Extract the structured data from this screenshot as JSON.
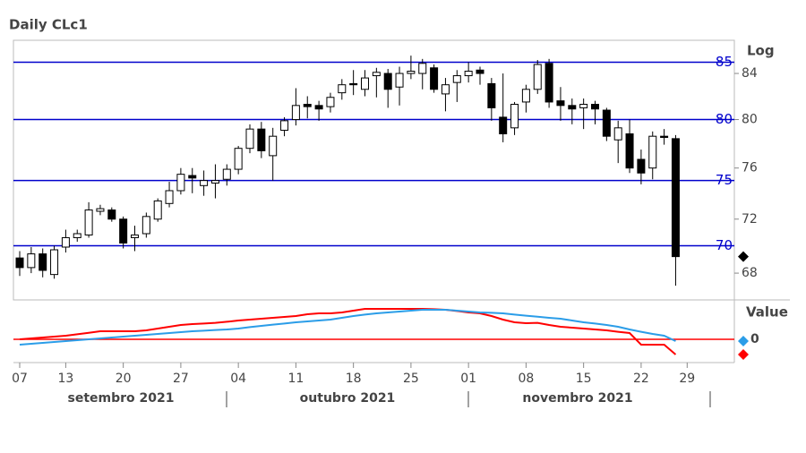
{
  "chart_data": [
    {
      "type": "candlestick",
      "title": "Daily CLc1",
      "scale_label": "Log",
      "log": true,
      "ylim": [
        66.1,
        87
      ],
      "yticks": [
        68,
        72,
        76,
        80,
        84
      ],
      "hlines": [
        85,
        80,
        75,
        70
      ],
      "hline_color": "#0000cc",
      "up_color": "#ffffff",
      "down_color": "#000000",
      "xticks": [
        {
          "value": 0,
          "label": "07"
        },
        {
          "value": 4,
          "label": "13"
        },
        {
          "value": 9,
          "label": "20"
        },
        {
          "value": 14,
          "label": "27"
        },
        {
          "value": 19,
          "label": "04"
        },
        {
          "value": 24,
          "label": "11"
        },
        {
          "value": 29,
          "label": "18"
        },
        {
          "value": 34,
          "label": "25"
        },
        {
          "value": 39,
          "label": "01"
        },
        {
          "value": 44,
          "label": "08"
        },
        {
          "value": 49,
          "label": "15"
        },
        {
          "value": 54,
          "label": "22"
        },
        {
          "value": 58,
          "label": "29"
        }
      ],
      "months": [
        "setembro 2021",
        "outubro 2021",
        "novembro 2021"
      ],
      "open": [
        69.1,
        68.4,
        69.4,
        67.9,
        69.9,
        70.6,
        70.8,
        72.6,
        72.7,
        72.0,
        70.6,
        70.9,
        72.0,
        73.2,
        74.2,
        75.4,
        74.6,
        74.8,
        75.1,
        75.9,
        77.6,
        79.2,
        77.0,
        79.1,
        80.0,
        81.3,
        81.2,
        81.1,
        82.3,
        83.1,
        82.6,
        83.8,
        84.0,
        82.8,
        84.0,
        84.0,
        84.5,
        82.2,
        83.2,
        83.8,
        84.3,
        83.1,
        80.2,
        79.3,
        81.5,
        82.6,
        84.9,
        81.6,
        81.2,
        81.0,
        81.3,
        80.8,
        78.3,
        78.8,
        76.7,
        76.0,
        78.6,
        78.4
      ],
      "high": [
        69.6,
        69.9,
        69.8,
        70.0,
        71.2,
        71.2,
        73.3,
        73.1,
        72.9,
        72.2,
        71.5,
        72.5,
        73.6,
        74.9,
        76.0,
        76.0,
        75.8,
        76.3,
        76.3,
        77.8,
        79.6,
        79.8,
        79.3,
        80.2,
        82.7,
        82.0,
        81.6,
        82.3,
        83.5,
        84.3,
        84.3,
        84.5,
        84.4,
        84.6,
        85.6,
        85.3,
        84.8,
        83.6,
        84.3,
        85.0,
        84.6,
        83.6,
        84.0,
        81.5,
        83.0,
        85.2,
        85.3,
        82.8,
        81.8,
        81.8,
        81.6,
        81.0,
        79.9,
        80.0,
        77.5,
        79.0,
        79.2,
        78.7
      ],
      "low": [
        67.8,
        68.0,
        67.7,
        67.6,
        69.5,
        70.3,
        70.6,
        72.3,
        71.8,
        69.8,
        69.6,
        70.6,
        71.8,
        72.9,
        73.9,
        74.0,
        73.8,
        73.6,
        74.6,
        75.5,
        77.2,
        76.8,
        75.0,
        78.6,
        79.5,
        80.1,
        79.9,
        80.6,
        81.7,
        82.1,
        82.0,
        81.9,
        81.0,
        81.2,
        83.5,
        82.6,
        82.3,
        80.7,
        81.5,
        83.2,
        83.0,
        79.9,
        78.1,
        78.7,
        80.6,
        82.2,
        81.0,
        79.9,
        79.6,
        79.2,
        79.6,
        78.2,
        76.4,
        75.6,
        74.7,
        75.1,
        77.9,
        67.1
      ],
      "close": [
        68.4,
        69.4,
        68.2,
        69.7,
        70.6,
        70.9,
        72.7,
        72.8,
        72.0,
        70.2,
        70.8,
        72.2,
        73.4,
        74.2,
        75.5,
        75.2,
        75.0,
        75.0,
        75.9,
        77.6,
        79.2,
        77.4,
        78.6,
        79.9,
        81.2,
        81.1,
        80.9,
        81.9,
        83.0,
        83.0,
        83.6,
        84.1,
        82.6,
        84.0,
        84.2,
        84.9,
        82.6,
        83.0,
        83.8,
        84.2,
        84.0,
        81.0,
        78.8,
        81.3,
        82.6,
        84.8,
        81.5,
        81.2,
        80.9,
        81.3,
        80.9,
        78.6,
        79.3,
        76.0,
        75.6,
        78.6,
        78.5,
        69.2
      ]
    },
    {
      "type": "line",
      "scale_label": "Value",
      "ylim": [
        -1.3,
        2.2
      ],
      "yticks": [
        0
      ],
      "grid_color": "#ff0000",
      "series": [
        {
          "color": "#ff0000",
          "values": [
            0,
            0.05,
            0.1,
            0.15,
            0.2,
            0.28,
            0.36,
            0.45,
            0.45,
            0.45,
            0.45,
            0.5,
            0.6,
            0.7,
            0.8,
            0.85,
            0.88,
            0.92,
            0.98,
            1.05,
            1.1,
            1.15,
            1.2,
            1.25,
            1.3,
            1.4,
            1.45,
            1.45,
            1.5,
            1.6,
            1.7,
            1.7,
            1.7,
            1.7,
            1.7,
            1.7,
            1.68,
            1.65,
            1.58,
            1.5,
            1.45,
            1.3,
            1.1,
            0.95,
            0.9,
            0.92,
            0.8,
            0.7,
            0.65,
            0.6,
            0.55,
            0.5,
            0.42,
            0.35,
            -0.3,
            -0.3,
            -0.3,
            -0.85
          ]
        },
        {
          "color": "#2b9de8",
          "values": [
            -0.3,
            -0.25,
            -0.2,
            -0.15,
            -0.1,
            -0.05,
            0,
            0.05,
            0.1,
            0.15,
            0.2,
            0.25,
            0.3,
            0.35,
            0.4,
            0.45,
            0.48,
            0.52,
            0.55,
            0.6,
            0.68,
            0.75,
            0.82,
            0.88,
            0.95,
            1.0,
            1.05,
            1.1,
            1.2,
            1.3,
            1.38,
            1.45,
            1.5,
            1.55,
            1.6,
            1.65,
            1.65,
            1.65,
            1.6,
            1.55,
            1.5,
            1.48,
            1.45,
            1.38,
            1.32,
            1.26,
            1.2,
            1.15,
            1.05,
            0.95,
            0.88,
            0.8,
            0.7,
            0.55,
            0.42,
            0.3,
            0.2,
            -0.1
          ]
        }
      ]
    }
  ]
}
